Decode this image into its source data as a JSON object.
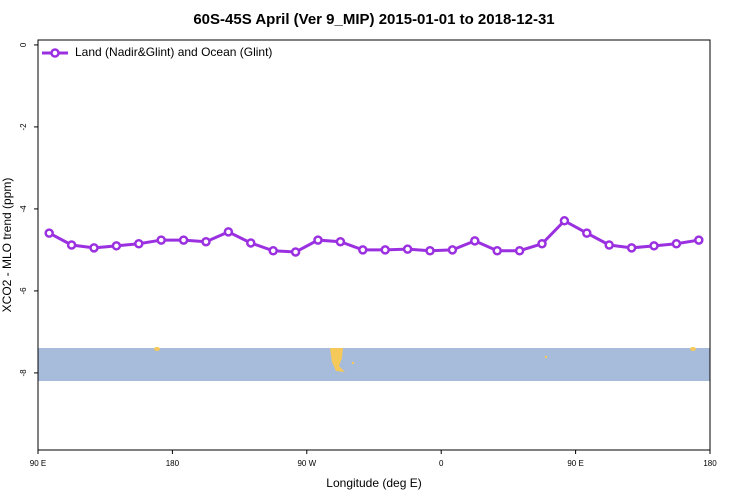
{
  "chart_data": {
    "type": "line",
    "title": "60S-45S April (Ver 9_MIP)   2015-01-01 to 2018-12-31",
    "x_label": "Longitude (deg E)",
    "y_label": "XCO2 - MLO trend (ppm)",
    "x": [
      97.5,
      112.5,
      127.5,
      142.5,
      157.5,
      172.5,
      187.5,
      202.5,
      217.5,
      232.5,
      247.5,
      262.5,
      277.5,
      292.5,
      307.5,
      322.5,
      337.5,
      352.5,
      367.5,
      382.5,
      397.5,
      412.5,
      427.5,
      442.5,
      457.5,
      472.5,
      487.5,
      502.5,
      517.5,
      532.5
    ],
    "series": [
      {
        "name": "Land (Nadir&Glint) and Ocean (Glint)",
        "color": "#9b30e0",
        "values": [
          -4.59,
          -4.88,
          -4.95,
          -4.9,
          -4.85,
          -4.76,
          -4.76,
          -4.8,
          -4.56,
          -4.83,
          -5.02,
          -5.05,
          -4.76,
          -4.8,
          -5.0,
          -5.0,
          -4.98,
          -5.02,
          -5.0,
          -4.78,
          -5.02,
          -5.02,
          -4.85,
          -4.29,
          -4.59,
          -4.88,
          -4.95,
          -4.9,
          -4.85,
          -4.76
        ]
      }
    ],
    "xlim": [
      90,
      540
    ],
    "xticks": [
      {
        "value": 90,
        "label": "90 E"
      },
      180,
      {
        "value": 270,
        "label": "90 W"
      },
      {
        "value": 360,
        "label": "0"
      },
      {
        "value": 450,
        "label": "90 E"
      },
      {
        "value": 540,
        "label": "180"
      }
    ],
    "ylim": [
      -9.88,
      0.12
    ],
    "yticks": [
      0,
      -2,
      -4,
      -6,
      -8
    ],
    "legend": "top-left"
  }
}
